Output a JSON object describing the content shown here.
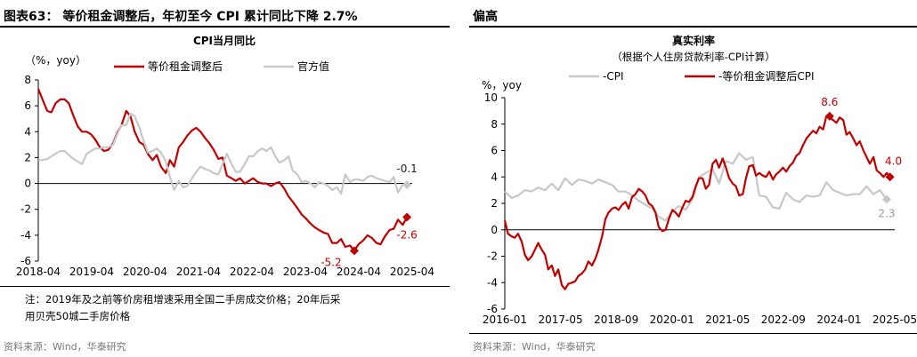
{
  "left": {
    "figure_title": "图表63： 等价租金调整后，年初至今 CPI 累计同比下降 2.7%",
    "source": "资料来源：Wind，华泰研究",
    "note_line1": "注：2019年及之前等价房租增速采用全国二手房成交价格；20年后采",
    "note_line2": "用贝壳50城二手房价格",
    "chart_data": {
      "type": "line",
      "title": "CPI当月同比",
      "ylabel": "（%，yoy）",
      "ylim": [
        -6,
        8
      ],
      "yticks": [
        -6,
        -4,
        -2,
        0,
        2,
        4,
        6,
        8
      ],
      "xlim": [
        2018.25,
        2025.35
      ],
      "xtick_labels": [
        "2018-04",
        "2019-04",
        "2020-04",
        "2021-04",
        "2022-04",
        "2023-04",
        "2024-04",
        "2025-04"
      ],
      "legend_position": "top",
      "series": [
        {
          "name": "等价租金调整后",
          "color": "#c00000",
          "x": [
            2018.25,
            2018.33,
            2018.42,
            2018.5,
            2018.58,
            2018.67,
            2018.75,
            2018.83,
            2018.92,
            2019.0,
            2019.08,
            2019.17,
            2019.25,
            2019.33,
            2019.42,
            2019.5,
            2019.58,
            2019.67,
            2019.75,
            2019.83,
            2019.92,
            2020.0,
            2020.08,
            2020.17,
            2020.25,
            2020.33,
            2020.42,
            2020.5,
            2020.58,
            2020.67,
            2020.75,
            2020.83,
            2020.92,
            2021.0,
            2021.08,
            2021.17,
            2021.25,
            2021.33,
            2021.42,
            2021.5,
            2021.58,
            2021.67,
            2021.75,
            2021.83,
            2021.92,
            2022.0,
            2022.08,
            2022.17,
            2022.25,
            2022.33,
            2022.42,
            2022.5,
            2022.58,
            2022.67,
            2022.75,
            2022.83,
            2022.92,
            2023.0,
            2023.08,
            2023.17,
            2023.25,
            2023.33,
            2023.42,
            2023.5,
            2023.58,
            2023.67,
            2023.75,
            2023.83,
            2023.92,
            2024.0,
            2024.08,
            2024.17,
            2024.25,
            2024.33,
            2024.42,
            2024.5,
            2024.58,
            2024.67,
            2024.75,
            2024.83,
            2024.92,
            2025.0,
            2025.08,
            2025.17,
            2025.25
          ],
          "values": [
            7.3,
            6.5,
            5.6,
            5.5,
            6.2,
            6.5,
            6.5,
            6.2,
            5.2,
            4.4,
            4.0,
            4.0,
            3.8,
            3.4,
            2.8,
            2.5,
            2.6,
            3.1,
            3.9,
            4.5,
            5.6,
            5.2,
            4.0,
            3.2,
            3.0,
            2.3,
            1.8,
            2.2,
            1.3,
            0.8,
            1.8,
            1.3,
            2.8,
            3.2,
            3.7,
            4.1,
            4.3,
            4.0,
            3.5,
            3.1,
            2.6,
            1.9,
            2.0,
            0.6,
            0.4,
            0.2,
            0.4,
            0.0,
            0.2,
            0.4,
            0.1,
            0.0,
            0.0,
            -0.2,
            0.0,
            0.1,
            -0.4,
            -1.0,
            -1.4,
            -1.9,
            -2.4,
            -2.7,
            -3.1,
            -3.4,
            -3.6,
            -3.8,
            -3.9,
            -4.6,
            -4.6,
            -4.3,
            -4.9,
            -4.8,
            -5.2,
            -4.7,
            -4.4,
            -4.0,
            -4.2,
            -4.6,
            -4.7,
            -4.1,
            -3.6,
            -3.5,
            -2.8,
            -3.2,
            -2.6
          ]
        },
        {
          "name": "官方值",
          "color": "#c8c8c8",
          "x": [
            2018.25,
            2018.33,
            2018.42,
            2018.5,
            2018.58,
            2018.67,
            2018.75,
            2018.83,
            2018.92,
            2019.0,
            2019.08,
            2019.17,
            2019.25,
            2019.33,
            2019.42,
            2019.5,
            2019.58,
            2019.67,
            2019.75,
            2019.83,
            2019.92,
            2020.0,
            2020.08,
            2020.17,
            2020.25,
            2020.33,
            2020.42,
            2020.5,
            2020.58,
            2020.67,
            2020.75,
            2020.83,
            2020.92,
            2021.0,
            2021.08,
            2021.17,
            2021.25,
            2021.33,
            2021.42,
            2021.5,
            2021.58,
            2021.67,
            2021.75,
            2021.83,
            2021.92,
            2022.0,
            2022.08,
            2022.17,
            2022.25,
            2022.33,
            2022.42,
            2022.5,
            2022.58,
            2022.67,
            2022.75,
            2022.83,
            2022.92,
            2023.0,
            2023.08,
            2023.17,
            2023.25,
            2023.33,
            2023.42,
            2023.5,
            2023.58,
            2023.67,
            2023.75,
            2023.83,
            2023.92,
            2024.0,
            2024.08,
            2024.17,
            2024.25,
            2024.33,
            2024.42,
            2024.5,
            2024.58,
            2024.67,
            2024.75,
            2024.83,
            2024.92,
            2025.0,
            2025.08,
            2025.17,
            2025.25
          ],
          "values": [
            1.8,
            1.8,
            1.9,
            2.1,
            2.3,
            2.5,
            2.5,
            2.2,
            1.9,
            1.7,
            1.5,
            2.3,
            2.5,
            2.7,
            2.7,
            2.8,
            2.8,
            3.0,
            3.8,
            4.5,
            4.5,
            5.4,
            5.2,
            4.3,
            3.3,
            2.4,
            2.5,
            2.7,
            2.4,
            1.7,
            0.5,
            -0.5,
            0.2,
            -0.3,
            -0.2,
            0.4,
            0.9,
            1.3,
            1.1,
            1.0,
            0.8,
            0.7,
            1.5,
            2.3,
            1.5,
            0.9,
            0.9,
            1.5,
            2.1,
            2.1,
            2.5,
            2.7,
            2.5,
            2.8,
            2.1,
            1.6,
            1.8,
            2.1,
            1.0,
            0.7,
            0.1,
            0.2,
            0.0,
            -0.3,
            0.1,
            0.0,
            -0.2,
            -0.5,
            -0.3,
            -0.8,
            0.7,
            0.1,
            0.3,
            0.3,
            0.2,
            0.5,
            0.6,
            0.4,
            0.3,
            0.2,
            0.1,
            0.5,
            -0.7,
            -0.1,
            -0.1
          ]
        }
      ],
      "annotations": [
        {
          "text": "-0.1",
          "x": 2025.25,
          "y": -0.1,
          "series": 1
        },
        {
          "text": "-5.2",
          "x": 2024.25,
          "y": -5.2,
          "series": 0
        },
        {
          "text": "-2.6",
          "x": 2025.25,
          "y": -2.6,
          "series": 0
        }
      ]
    }
  },
  "right": {
    "figure_title": "偏高",
    "source": "资料来源：Wind，华泰研究",
    "chart_data": {
      "type": "line",
      "title": "真实利率",
      "subtitle": "（根据个人住房贷款利率-CPI计算）",
      "ylabel": "%，yoy",
      "ylim": [
        -6,
        10
      ],
      "yticks": [
        -6,
        -4,
        -2,
        0,
        2,
        4,
        6,
        8,
        10
      ],
      "xlim": [
        2016.0,
        2025.7
      ],
      "xtick_labels": [
        "2016-01",
        "2017-05",
        "2018-09",
        "2020-01",
        "2021-05",
        "2022-09",
        "2024-01",
        "2025-05"
      ],
      "legend_position": "top",
      "series": [
        {
          "name": "-CPI",
          "color": "#c8c8c8",
          "x": [
            2016.0,
            2016.17,
            2016.33,
            2016.5,
            2016.67,
            2016.83,
            2017.0,
            2017.17,
            2017.33,
            2017.5,
            2017.67,
            2017.83,
            2018.0,
            2018.17,
            2018.33,
            2018.5,
            2018.67,
            2018.83,
            2019.0,
            2019.17,
            2019.33,
            2019.5,
            2019.67,
            2019.83,
            2020.0,
            2020.17,
            2020.33,
            2020.5,
            2020.67,
            2020.83,
            2021.0,
            2021.17,
            2021.33,
            2021.5,
            2021.67,
            2021.83,
            2022.0,
            2022.17,
            2022.33,
            2022.5,
            2022.67,
            2022.83,
            2023.0,
            2023.17,
            2023.33,
            2023.5,
            2023.67,
            2023.83,
            2024.0,
            2024.17,
            2024.33,
            2024.5,
            2024.67,
            2024.83,
            2025.0,
            2025.17,
            2025.33,
            2025.5
          ],
          "values": [
            2.9,
            2.4,
            2.6,
            3.0,
            2.9,
            3.2,
            3.0,
            3.5,
            3.0,
            3.9,
            3.4,
            3.8,
            3.7,
            3.5,
            3.8,
            3.6,
            3.4,
            2.9,
            2.9,
            2.6,
            2.2,
            1.9,
            1.6,
            1.0,
            0.7,
            1.4,
            1.8,
            1.5,
            2.3,
            4.0,
            4.3,
            4.6,
            3.5,
            5.2,
            5.0,
            5.8,
            5.3,
            5.5,
            2.6,
            2.5,
            1.7,
            1.6,
            2.8,
            2.3,
            2.1,
            2.6,
            2.5,
            2.6,
            3.6,
            3.0,
            2.8,
            2.6,
            2.7,
            2.7,
            3.3,
            2.7,
            3.0,
            2.3
          ]
        },
        {
          "name": "-等价租金调整后CPI",
          "color": "#c00000",
          "x": [
            2016.0,
            2016.08,
            2016.17,
            2016.25,
            2016.33,
            2016.42,
            2016.5,
            2016.58,
            2016.67,
            2016.75,
            2016.83,
            2016.92,
            2017.0,
            2017.08,
            2017.17,
            2017.25,
            2017.33,
            2017.42,
            2017.5,
            2017.58,
            2017.67,
            2017.75,
            2017.83,
            2017.92,
            2018.0,
            2018.08,
            2018.17,
            2018.25,
            2018.33,
            2018.42,
            2018.5,
            2018.58,
            2018.67,
            2018.75,
            2018.83,
            2018.92,
            2019.0,
            2019.08,
            2019.17,
            2019.25,
            2019.33,
            2019.42,
            2019.5,
            2019.58,
            2019.67,
            2019.75,
            2019.83,
            2019.92,
            2020.0,
            2020.08,
            2020.17,
            2020.25,
            2020.33,
            2020.42,
            2020.5,
            2020.58,
            2020.67,
            2020.75,
            2020.83,
            2020.92,
            2021.0,
            2021.08,
            2021.17,
            2021.25,
            2021.33,
            2021.42,
            2021.5,
            2021.58,
            2021.67,
            2021.75,
            2021.83,
            2021.92,
            2022.0,
            2022.08,
            2022.17,
            2022.25,
            2022.33,
            2022.42,
            2022.5,
            2022.58,
            2022.67,
            2022.75,
            2022.83,
            2022.92,
            2023.0,
            2023.08,
            2023.17,
            2023.25,
            2023.33,
            2023.42,
            2023.5,
            2023.58,
            2023.67,
            2023.75,
            2023.83,
            2023.92,
            2024.0,
            2024.08,
            2024.17,
            2024.25,
            2024.33,
            2024.42,
            2024.5,
            2024.58,
            2024.67,
            2024.75,
            2024.83,
            2024.92,
            2025.0,
            2025.08,
            2025.17,
            2025.25,
            2025.33,
            2025.42,
            2025.5,
            2025.58
          ],
          "values": [
            0.7,
            -0.3,
            -0.5,
            -0.6,
            -0.3,
            -0.9,
            -1.9,
            -2.3,
            -2.0,
            -1.5,
            -1.0,
            -1.5,
            -1.9,
            -3.0,
            -2.7,
            -3.5,
            -3.0,
            -4.2,
            -4.5,
            -4.1,
            -4.0,
            -3.9,
            -3.5,
            -3.3,
            -3.0,
            -2.4,
            -2.7,
            -2.2,
            -1.5,
            -0.5,
            0.8,
            1.3,
            1.6,
            1.7,
            1.5,
            1.9,
            2.1,
            1.6,
            2.5,
            2.7,
            3.1,
            2.9,
            2.6,
            2.0,
            1.8,
            1.3,
            0.2,
            -0.1,
            0.0,
            0.8,
            1.5,
            1.3,
            1.0,
            1.7,
            2.2,
            2.1,
            2.5,
            3.3,
            3.9,
            3.9,
            3.1,
            3.4,
            5.0,
            5.3,
            4.7,
            5.4,
            4.7,
            3.9,
            3.5,
            3.3,
            2.6,
            2.7,
            3.9,
            4.8,
            4.9,
            4.1,
            4.3,
            4.1,
            4.0,
            4.4,
            3.8,
            4.2,
            4.4,
            4.7,
            4.4,
            4.8,
            5.1,
            5.6,
            5.8,
            6.4,
            6.9,
            7.2,
            7.5,
            7.3,
            7.8,
            7.6,
            8.6,
            8.5,
            8.3,
            8.1,
            8.5,
            8.3,
            7.2,
            7.4,
            6.9,
            6.4,
            6.7,
            6.0,
            5.5,
            5.0,
            5.5,
            4.5,
            4.3,
            4.0,
            4.3,
            4.0
          ]
        }
      ],
      "annotations": [
        {
          "text": "8.6",
          "x": 2024.08,
          "y": 8.6,
          "series": 1
        },
        {
          "text": "4.0",
          "x": 2025.58,
          "y": 4.0,
          "series": 1
        },
        {
          "text": "2.3",
          "x": 2025.5,
          "y": 2.3,
          "series": 0
        }
      ]
    }
  }
}
